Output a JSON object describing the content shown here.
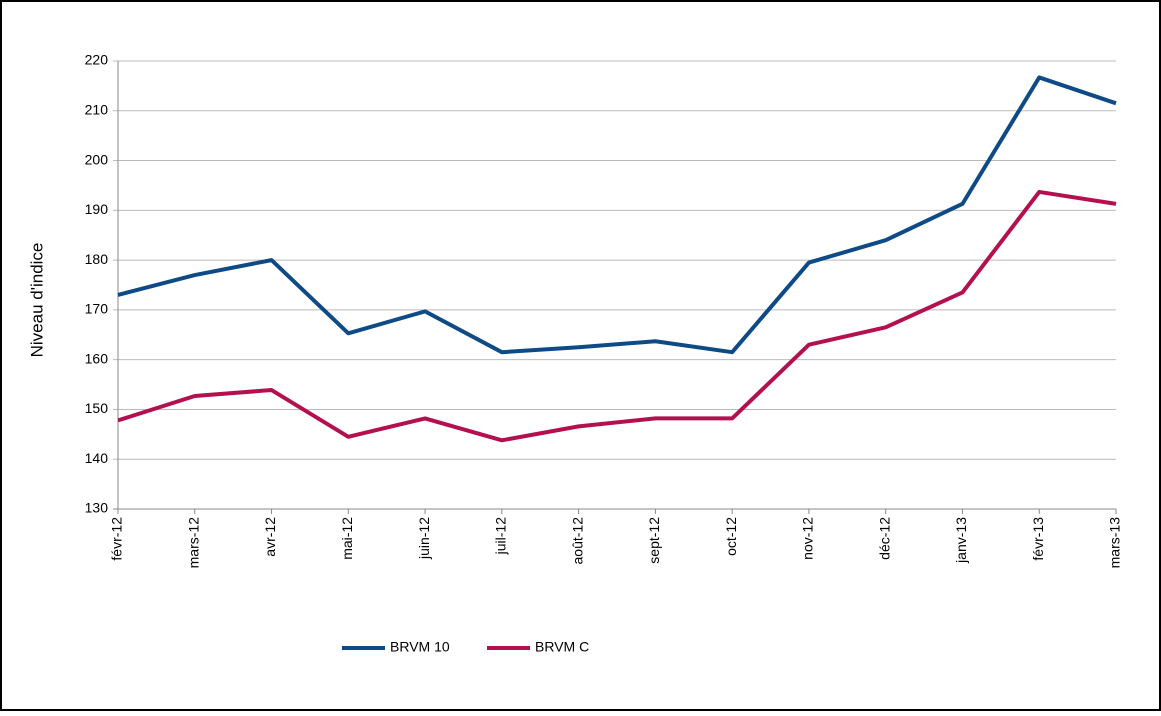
{
  "chart_data": {
    "type": "line",
    "y_label": "Niveau d'indice",
    "categories": [
      "févr-12",
      "mars-12",
      "avr-12",
      "mai-12",
      "juin-12",
      "juil-12",
      "août-12",
      "sept-12",
      "oct-12",
      "nov-12",
      "déc-12",
      "janv-13",
      "févr-13",
      "mars-13"
    ],
    "series": [
      {
        "name": "BRVM 10",
        "color": "#0e4a86",
        "values": [
          173,
          177,
          180,
          165.3,
          169.7,
          161.5,
          162.5,
          163.7,
          161.5,
          179.5,
          184,
          191.3,
          216.7,
          211.5
        ]
      },
      {
        "name": "BRVM C",
        "color": "#b4104f",
        "values": [
          147.8,
          152.7,
          153.9,
          144.5,
          148.2,
          143.8,
          146.6,
          148.2,
          148.2,
          163,
          166.5,
          173.5,
          193.7,
          191.3
        ]
      }
    ],
    "ylim": [
      130,
      220
    ],
    "yticks": [
      130,
      140,
      150,
      160,
      170,
      180,
      190,
      200,
      210,
      220
    ],
    "grid": true
  }
}
